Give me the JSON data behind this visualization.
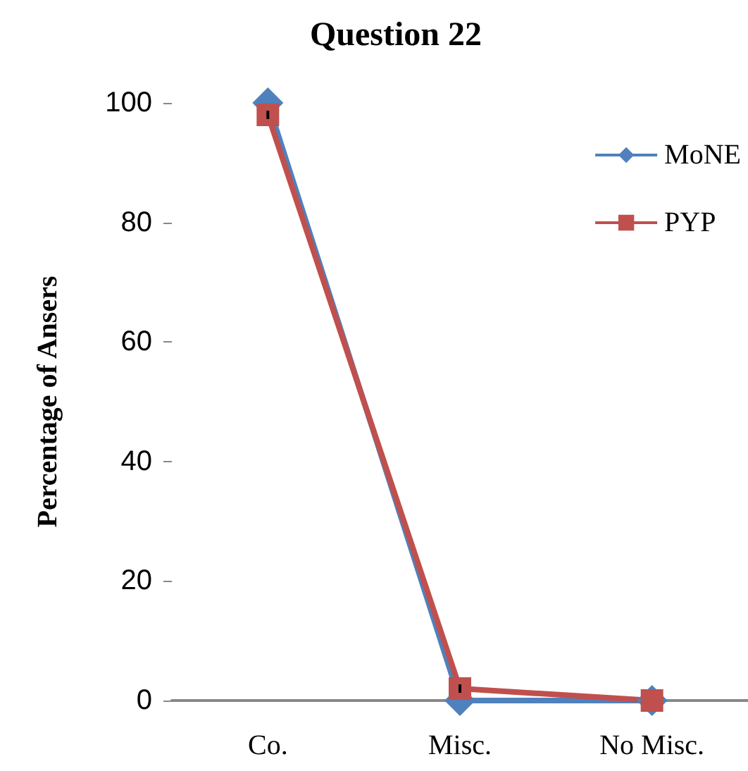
{
  "chart_data": {
    "type": "line",
    "title": "Question 22",
    "ylabel": "Percentage of Ansers",
    "categories": [
      "Co.",
      "Misc.",
      "No Misc."
    ],
    "series": [
      {
        "name": "MoNE",
        "color": "#4f81bd",
        "marker": "diamond",
        "values": [
          100,
          0,
          0
        ]
      },
      {
        "name": "PYP",
        "color": "#c0504d",
        "marker": "square",
        "values": [
          98,
          2,
          0
        ],
        "errors": [
          0.7,
          0.7,
          null
        ]
      }
    ],
    "ylim": [
      0,
      100
    ],
    "yticks": [
      0,
      20,
      40,
      60,
      80,
      100
    ],
    "grid": false,
    "legend": "top right",
    "line_style": "solid"
  }
}
